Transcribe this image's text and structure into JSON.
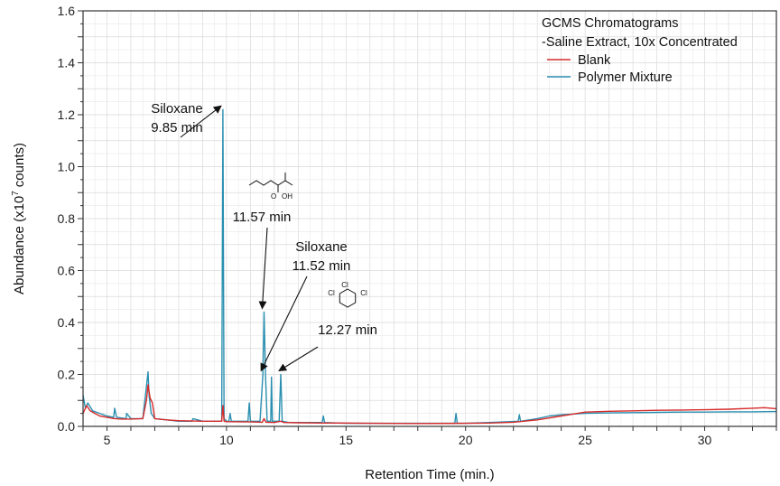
{
  "chart_data": {
    "type": "line",
    "title": "GCMS Chromatograms",
    "subtitle": "-Saline Extract, 10x Concentrated",
    "xlabel": "Retention Time (min.)",
    "ylabel": "Abundance (x10",
    "ylabel_sup": "7",
    "ylabel_suffix": "counts)",
    "xlim": [
      4,
      33
    ],
    "ylim": [
      0,
      1.6
    ],
    "x_ticks": [
      "5",
      "10",
      "15",
      "20",
      "25",
      "30"
    ],
    "y_ticks": [
      "0.0",
      "0.2",
      "0.4",
      "0.6",
      "0.8",
      "1.0",
      "1.2",
      "1.4",
      "1.6"
    ],
    "grid": true,
    "legend_position": "top-right",
    "series": [
      {
        "name": "Blank",
        "color": "#d62a2a",
        "x": [
          4.0,
          4.15,
          4.3,
          4.5,
          4.7,
          5.0,
          5.3,
          5.6,
          6.0,
          6.5,
          6.65,
          6.72,
          6.8,
          6.9,
          7.0,
          7.5,
          8.0,
          9.0,
          9.8,
          9.85,
          9.9,
          10.0,
          11.0,
          11.5,
          11.57,
          11.65,
          12.0,
          12.27,
          12.4,
          13.0,
          14.0,
          15.0,
          16.0,
          18.0,
          20.0,
          21.0,
          22.0,
          23.0,
          24.0,
          25.0,
          26.0,
          27.0,
          28.0,
          29.0,
          30.0,
          31.0,
          32.0,
          32.5,
          33.0
        ],
        "y": [
          0.05,
          0.08,
          0.06,
          0.05,
          0.04,
          0.035,
          0.03,
          0.028,
          0.028,
          0.03,
          0.1,
          0.16,
          0.11,
          0.09,
          0.03,
          0.025,
          0.022,
          0.02,
          0.02,
          0.08,
          0.02,
          0.018,
          0.017,
          0.016,
          0.03,
          0.016,
          0.015,
          0.02,
          0.015,
          0.014,
          0.013,
          0.013,
          0.012,
          0.011,
          0.012,
          0.013,
          0.016,
          0.025,
          0.04,
          0.055,
          0.058,
          0.06,
          0.062,
          0.063,
          0.064,
          0.066,
          0.07,
          0.072,
          0.068
        ]
      },
      {
        "name": "Polymer Mixture",
        "color": "#2a8fb0",
        "x": [
          4.0,
          4.1,
          4.2,
          4.4,
          4.7,
          5.0,
          5.28,
          5.32,
          5.4,
          5.8,
          5.82,
          6.0,
          6.5,
          6.72,
          6.76,
          6.85,
          7.0,
          7.5,
          8.0,
          8.55,
          8.6,
          9.0,
          9.8,
          9.85,
          9.9,
          10.0,
          10.1,
          10.15,
          10.2,
          10.9,
          10.95,
          11.0,
          11.4,
          11.52,
          11.57,
          11.63,
          11.7,
          11.85,
          11.88,
          11.92,
          12.2,
          12.27,
          12.33,
          12.6,
          13.5,
          14.0,
          14.05,
          14.1,
          15.0,
          16.0,
          18.0,
          19.55,
          19.6,
          19.65,
          20.0,
          21.0,
          22.2,
          22.25,
          22.3,
          23.0,
          23.5,
          24.0,
          25.0,
          26.0,
          27.0,
          28.0,
          29.0,
          30.0,
          31.0,
          32.0,
          33.0
        ],
        "y": [
          0.12,
          0.07,
          0.09,
          0.06,
          0.05,
          0.04,
          0.035,
          0.07,
          0.035,
          0.03,
          0.05,
          0.03,
          0.03,
          0.21,
          0.12,
          0.05,
          0.03,
          0.025,
          0.02,
          0.02,
          0.03,
          0.02,
          0.02,
          1.22,
          0.03,
          0.02,
          0.02,
          0.05,
          0.02,
          0.02,
          0.09,
          0.02,
          0.02,
          0.2,
          0.44,
          0.2,
          0.02,
          0.02,
          0.19,
          0.02,
          0.02,
          0.2,
          0.02,
          0.015,
          0.015,
          0.015,
          0.04,
          0.015,
          0.012,
          0.012,
          0.012,
          0.012,
          0.05,
          0.012,
          0.012,
          0.015,
          0.02,
          0.045,
          0.02,
          0.03,
          0.04,
          0.045,
          0.05,
          0.052,
          0.053,
          0.054,
          0.055,
          0.055,
          0.056,
          0.056,
          0.057
        ]
      }
    ],
    "annotations": [
      {
        "id": "siloxane1",
        "lines": [
          "Siloxane",
          "9.85 min"
        ],
        "target_x": 9.85,
        "target_y": 1.22
      },
      {
        "id": "acid",
        "lines": [
          "11.57 min"
        ],
        "target_x": 11.57,
        "target_y": 0.44,
        "structure_labels": [
          "O",
          "OH"
        ]
      },
      {
        "id": "siloxane2",
        "lines": [
          "Siloxane",
          "11.52 min"
        ],
        "target_x": 11.52,
        "target_y": 0.2
      },
      {
        "id": "trichloro",
        "lines": [
          "12.27 min"
        ],
        "target_x": 12.27,
        "target_y": 0.2,
        "structure_labels": [
          "Cl",
          "Cl",
          "Cl"
        ]
      }
    ]
  }
}
